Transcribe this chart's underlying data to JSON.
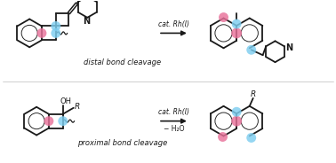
{
  "background_color": "#ffffff",
  "pink_color": "#e8729a",
  "blue_color": "#7ecef0",
  "line_color": "#1a1a1a",
  "label_top": "distal bond cleavage",
  "label_bottom": "proximal bond cleavage",
  "cat_text_top": "cat. Rh(I)",
  "cat_text_bottom": "cat. Rh(I)",
  "minus_water": "− H₂O",
  "figsize": [
    3.78,
    1.84
  ],
  "dpi": 100
}
